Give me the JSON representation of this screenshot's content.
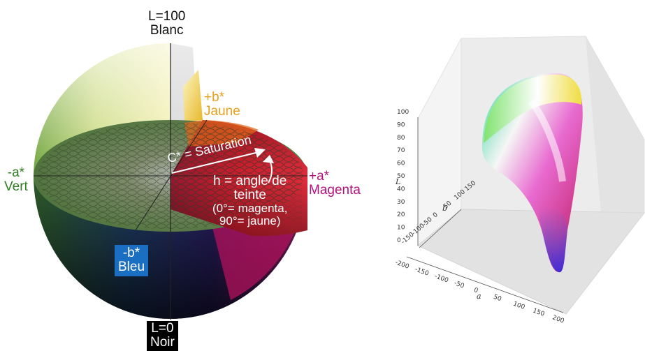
{
  "sphere": {
    "top_label": "L=100",
    "top_sub": "Blanc",
    "bottom_label": "L=0",
    "bottom_sub": "Noir",
    "yellow_axis": "+b*",
    "yellow_name": "Jaune",
    "green_axis": "-a*",
    "green_name": "Vert",
    "magenta_axis": "+a*",
    "magenta_name": "Magenta",
    "blue_axis": "-b*",
    "blue_name": "Bleu",
    "saturation": "C* = Saturation",
    "hue_line1": "h = angle de",
    "hue_line2": "teinte",
    "hue_line3": "(0°= magenta,",
    "hue_line4": "90°= jaune)",
    "colors": {
      "yellow": "#e6a11c",
      "green": "#2f7d20",
      "magenta": "#b3127c",
      "blue": "#1b6fc2"
    }
  },
  "gamut_plot": {
    "l_axis_label": "L",
    "a_axis_label": "a",
    "b_axis_label": "b",
    "l_ticks": [
      "100",
      "90",
      "80",
      "70",
      "60",
      "50",
      "40",
      "30",
      "20",
      "10",
      "0"
    ],
    "a_ticks": [
      "-200",
      "-150",
      "-100",
      "-50",
      "0",
      "50",
      "100",
      "150",
      "200"
    ],
    "b_ticks": [
      "150",
      "100",
      "50",
      "0",
      "-50",
      "-100",
      "-150"
    ]
  }
}
